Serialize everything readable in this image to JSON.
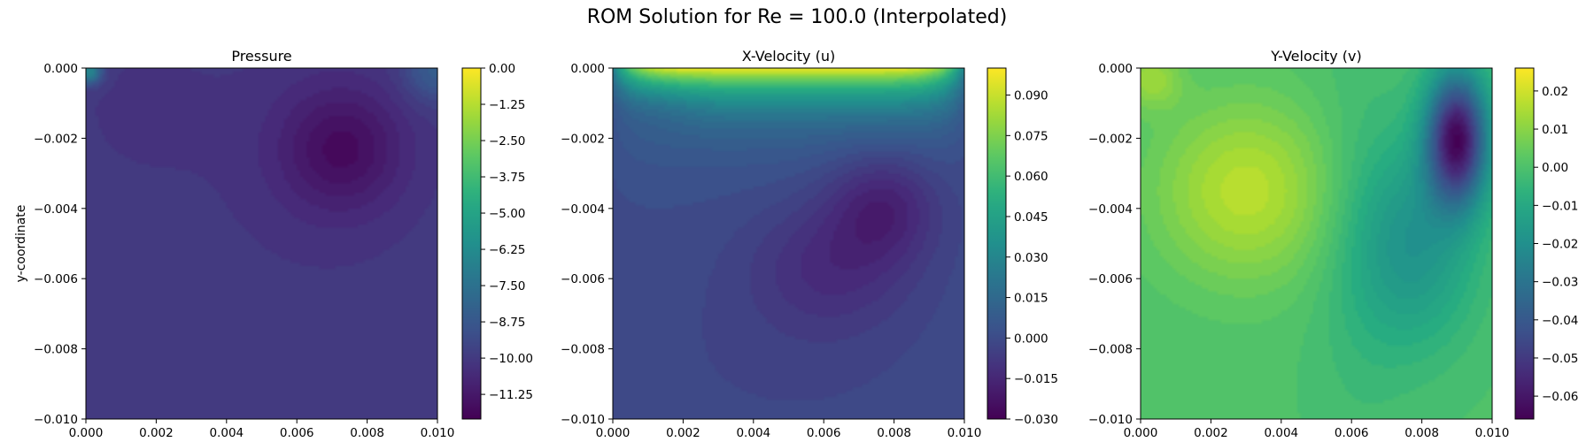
{
  "figure": {
    "suptitle": "ROM Solution for Re = 100.0 (Interpolated)"
  },
  "chart_data": [
    {
      "type": "heatmap",
      "title": "Pressure",
      "xlabel": "",
      "ylabel": "y-coordinate",
      "xlim": [
        0.0,
        0.01
      ],
      "ylim": [
        -0.01,
        0.0
      ],
      "xticks": [
        "0.000",
        "0.002",
        "0.004",
        "0.006",
        "0.008",
        "0.010"
      ],
      "yticks": [
        "0.000",
        "−0.002",
        "−0.004",
        "−0.006",
        "−0.008",
        "−0.010"
      ],
      "colorbar": {
        "range": [
          -12.1,
          0.0
        ],
        "ticks": [
          0.0,
          -1.25,
          -2.5,
          -3.75,
          -5.0,
          -6.25,
          -7.5,
          -8.75,
          -10.0,
          -11.25
        ],
        "tick_labels": [
          "0.00",
          "−1.25",
          "−2.50",
          "−3.75",
          "−5.00",
          "−6.25",
          "−7.50",
          "−8.75",
          "−10.00",
          "−11.25"
        ],
        "colormap": "viridis"
      },
      "field": {
        "base": -9.9,
        "features": [
          {
            "x": 0.0073,
            "y": -0.0023,
            "amp": -1.5,
            "sx": 0.0012,
            "sy": 0.0012
          },
          {
            "x": 0.0066,
            "y": -0.0025,
            "amp": -0.4,
            "sx": 0.0025,
            "sy": 0.0028
          },
          {
            "x": 0.0015,
            "y": -0.0012,
            "amp": -0.3,
            "sx": 0.0015,
            "sy": 0.0015
          },
          {
            "x": 0.0001,
            "y": -0.0001,
            "amp": 3.5,
            "sx": 0.00025,
            "sy": 0.00025
          },
          {
            "x": 0.0099,
            "y": -0.0001,
            "amp": 1.5,
            "sx": 0.0006,
            "sy": 0.0006
          }
        ]
      }
    },
    {
      "type": "heatmap",
      "title": "X-Velocity (u)",
      "xlabel": "",
      "ylabel": "",
      "xlim": [
        0.0,
        0.01
      ],
      "ylim": [
        -0.01,
        0.0
      ],
      "xticks": [
        "0.000",
        "0.002",
        "0.004",
        "0.006",
        "0.008",
        "0.010"
      ],
      "yticks": [
        "0.000",
        "−0.002",
        "−0.004",
        "−0.006",
        "−0.008",
        "−0.010"
      ],
      "colorbar": {
        "range": [
          -0.03,
          0.1
        ],
        "ticks": [
          0.09,
          0.075,
          0.06,
          0.045,
          0.03,
          0.015,
          0.0,
          -0.015,
          -0.03
        ],
        "tick_labels": [
          "0.090",
          "0.075",
          "0.060",
          "0.045",
          "0.030",
          "0.015",
          "0.000",
          "−0.015",
          "−0.030"
        ],
        "colormap": "viridis"
      },
      "field": {
        "base": 0.0,
        "lid": {
          "amp": 0.1,
          "decay": 0.0009
        },
        "features": [
          {
            "x": 0.0077,
            "y": -0.0039,
            "amp": -0.017,
            "sx": 0.0011,
            "sy": 0.0011
          },
          {
            "x": 0.0062,
            "y": -0.0056,
            "amp": -0.012,
            "sx": 0.0016,
            "sy": 0.0013
          },
          {
            "x": 0.0012,
            "y": -0.001,
            "amp": -0.007,
            "sx": 0.0009,
            "sy": 0.0006
          },
          {
            "x": 0.005,
            "y": -0.008,
            "amp": -0.003,
            "sx": 0.003,
            "sy": 0.002
          }
        ]
      }
    },
    {
      "type": "heatmap",
      "title": "Y-Velocity (v)",
      "xlabel": "",
      "ylabel": "",
      "xlim": [
        0.0,
        0.01
      ],
      "ylim": [
        -0.01,
        0.0
      ],
      "xticks": [
        "0.000",
        "0.002",
        "0.004",
        "0.006",
        "0.008",
        "0.010"
      ],
      "yticks": [
        "0.000",
        "−0.002",
        "−0.004",
        "−0.006",
        "−0.008",
        "−0.010"
      ],
      "colorbar": {
        "range": [
          -0.066,
          0.026
        ],
        "ticks": [
          0.02,
          0.01,
          0.0,
          -0.01,
          -0.02,
          -0.03,
          -0.04,
          -0.05,
          -0.06
        ],
        "tick_labels": [
          "0.02",
          "0.01",
          "0.00",
          "−0.01",
          "−0.02",
          "−0.03",
          "−0.04",
          "−0.05",
          "−0.06"
        ],
        "colormap": "viridis"
      },
      "field": {
        "base": 0.0,
        "features": [
          {
            "x": 0.003,
            "y": -0.0035,
            "amp": 0.017,
            "sx": 0.0018,
            "sy": 0.0018
          },
          {
            "x": 0.0003,
            "y": -0.0003,
            "amp": 0.012,
            "sx": 0.0006,
            "sy": 0.0006
          },
          {
            "x": 0.009,
            "y": -0.002,
            "amp": -0.062,
            "sx": 0.0006,
            "sy": 0.0013
          },
          {
            "x": 0.0078,
            "y": -0.005,
            "amp": -0.018,
            "sx": 0.0012,
            "sy": 0.002
          },
          {
            "x": 0.0062,
            "y": -0.005,
            "amp": -0.004,
            "sx": 0.001,
            "sy": 0.004
          }
        ]
      }
    }
  ]
}
